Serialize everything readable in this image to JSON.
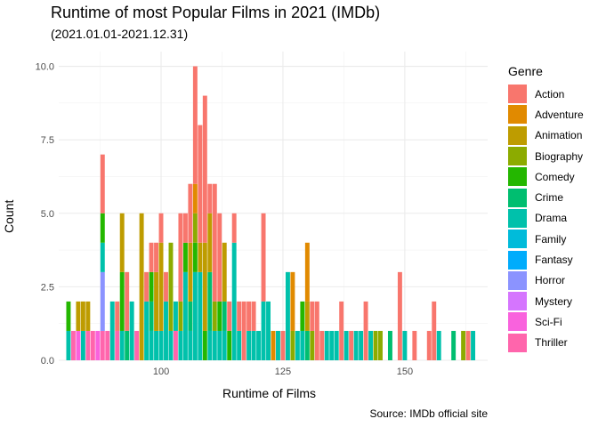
{
  "title": "Runtime of most Popular Films in 2021 (IMDb)",
  "subtitle": "(2021.01.01-2021.12.31)",
  "caption": "Source: IMDb official site",
  "legend_title": "Genre",
  "genres": [
    {
      "name": "Action",
      "color": "#F8766D"
    },
    {
      "name": "Adventure",
      "color": "#E18A00"
    },
    {
      "name": "Animation",
      "color": "#BE9C00"
    },
    {
      "name": "Biography",
      "color": "#8CAB00"
    },
    {
      "name": "Comedy",
      "color": "#24B700"
    },
    {
      "name": "Crime",
      "color": "#00BE70"
    },
    {
      "name": "Drama",
      "color": "#00C1AB"
    },
    {
      "name": "Family",
      "color": "#00BBDA"
    },
    {
      "name": "Fantasy",
      "color": "#00ACFC"
    },
    {
      "name": "Horror",
      "color": "#8B93FF"
    },
    {
      "name": "Mystery",
      "color": "#D575FE"
    },
    {
      "name": "Sci-Fi",
      "color": "#F962DD"
    },
    {
      "name": "Thriller",
      "color": "#FF65AC"
    }
  ],
  "chart_data": {
    "type": "bar",
    "stacked": true,
    "xlabel": "Runtime of Films",
    "ylabel": "Count",
    "xlim": [
      79,
      167
    ],
    "ylim": [
      0,
      10.5
    ],
    "x_ticks": [
      100,
      125,
      150
    ],
    "y_ticks": [
      0.0,
      2.5,
      5.0,
      7.5,
      10.0
    ],
    "y_tick_labels": [
      "0.0",
      "2.5",
      "5.0",
      "7.5",
      "10.0"
    ],
    "grid": true,
    "legend_position": "right",
    "bars": [
      {
        "x": 81,
        "stack": {
          "Comedy": 1,
          "Drama": 1
        }
      },
      {
        "x": 82,
        "stack": {
          "Thriller": 1
        }
      },
      {
        "x": 83,
        "stack": {
          "Animation": 1,
          "Sci-Fi": 1
        }
      },
      {
        "x": 84,
        "stack": {
          "Animation": 1,
          "Drama": 1
        }
      },
      {
        "x": 85,
        "stack": {
          "Animation": 1,
          "Thriller": 1
        }
      },
      {
        "x": 86,
        "stack": {
          "Thriller": 1
        }
      },
      {
        "x": 87,
        "stack": {
          "Sci-Fi": 1
        }
      },
      {
        "x": 88,
        "stack": {
          "Action": 2,
          "Comedy": 1,
          "Drama": 1,
          "Horror": 2,
          "Thriller": 1
        }
      },
      {
        "x": 89,
        "stack": {
          "Thriller": 1
        }
      },
      {
        "x": 90,
        "stack": {
          "Drama": 2
        }
      },
      {
        "x": 91,
        "stack": {
          "Action": 1,
          "Thriller": 1
        }
      },
      {
        "x": 92,
        "stack": {
          "Animation": 2,
          "Comedy": 2,
          "Drama": 1
        }
      },
      {
        "x": 93,
        "stack": {
          "Action": 2,
          "Crime": 1
        }
      },
      {
        "x": 94,
        "stack": {
          "Drama": 2
        }
      },
      {
        "x": 95,
        "stack": {
          "Thriller": 1
        }
      },
      {
        "x": 96,
        "stack": {
          "Animation": 5
        }
      },
      {
        "x": 97,
        "stack": {
          "Action": 1,
          "Drama": 2
        }
      },
      {
        "x": 98,
        "stack": {
          "Action": 1,
          "Comedy": 1,
          "Crime": 1,
          "Drama": 1
        }
      },
      {
        "x": 99,
        "stack": {
          "Action": 1,
          "Animation": 2,
          "Drama": 1
        }
      },
      {
        "x": 100,
        "stack": {
          "Action": 1,
          "Animation": 3,
          "Drama": 1
        }
      },
      {
        "x": 101,
        "stack": {
          "Action": 1,
          "Drama": 2
        }
      },
      {
        "x": 102,
        "stack": {
          "Biography": 3,
          "Drama": 1
        }
      },
      {
        "x": 103,
        "stack": {
          "Drama": 1,
          "Thriller": 1
        }
      },
      {
        "x": 104,
        "stack": {
          "Action": 3,
          "Biography": 1,
          "Drama": 1
        }
      },
      {
        "x": 105,
        "stack": {
          "Action": 1,
          "Comedy": 1,
          "Drama": 3
        }
      },
      {
        "x": 106,
        "stack": {
          "Action": 2,
          "Animation": 2,
          "Crime": 1,
          "Drama": 1
        }
      },
      {
        "x": 107,
        "stack": {
          "Action": 4,
          "Adventure": 1,
          "Biography": 1,
          "Comedy": 1,
          "Drama": 3
        }
      },
      {
        "x": 108,
        "stack": {
          "Action": 4,
          "Animation": 1,
          "Drama": 3
        }
      },
      {
        "x": 109,
        "stack": {
          "Action": 5,
          "Animation": 3,
          "Comedy": 1
        }
      },
      {
        "x": 110,
        "stack": {
          "Action": 1,
          "Animation": 2,
          "Crime": 2,
          "Drama": 1
        }
      },
      {
        "x": 111,
        "stack": {
          "Action": 4,
          "Biography": 1,
          "Drama": 1
        }
      },
      {
        "x": 112,
        "stack": {
          "Action": 3,
          "Comedy": 1,
          "Drama": 1
        }
      },
      {
        "x": 113,
        "stack": {
          "Animation": 2,
          "Crime": 1,
          "Drama": 1
        }
      },
      {
        "x": 114,
        "stack": {
          "Action": 1,
          "Comedy": 1
        }
      },
      {
        "x": 115,
        "stack": {
          "Action": 1,
          "Drama": 4
        }
      },
      {
        "x": 116,
        "stack": {
          "Action": 1,
          "Drama": 1
        }
      },
      {
        "x": 117,
        "stack": {
          "Action": 2
        }
      },
      {
        "x": 118,
        "stack": {
          "Action": 1,
          "Drama": 1
        }
      },
      {
        "x": 119,
        "stack": {
          "Action": 1,
          "Drama": 1
        }
      },
      {
        "x": 120,
        "stack": {
          "Drama": 1
        }
      },
      {
        "x": 121,
        "stack": {
          "Action": 3,
          "Drama": 2
        }
      },
      {
        "x": 122,
        "stack": {
          "Drama": 2
        }
      },
      {
        "x": 123,
        "stack": {
          "Adventure": 1
        }
      },
      {
        "x": 124,
        "stack": {
          "Drama": 1
        }
      },
      {
        "x": 125,
        "stack": {
          "Action": 1
        }
      },
      {
        "x": 126,
        "stack": {
          "Drama": 3
        }
      },
      {
        "x": 127,
        "stack": {
          "Adventure": 2,
          "Biography": 1
        }
      },
      {
        "x": 128,
        "stack": {
          "Drama": 1
        }
      },
      {
        "x": 129,
        "stack": {
          "Comedy": 1,
          "Drama": 1
        }
      },
      {
        "x": 130,
        "stack": {
          "Adventure": 2,
          "Animation": 1,
          "Crime": 1
        }
      },
      {
        "x": 131,
        "stack": {
          "Action": 1,
          "Biography": 1
        }
      },
      {
        "x": 132,
        "stack": {
          "Action": 2
        }
      },
      {
        "x": 133,
        "stack": {
          "Action": 1
        }
      },
      {
        "x": 134,
        "stack": {
          "Drama": 1
        }
      },
      {
        "x": 135,
        "stack": {
          "Drama": 1
        }
      },
      {
        "x": 136,
        "stack": {
          "Drama": 1
        }
      },
      {
        "x": 137,
        "stack": {
          "Action": 2
        }
      },
      {
        "x": 138,
        "stack": {
          "Drama": 1
        }
      },
      {
        "x": 139,
        "stack": {
          "Action": 1
        }
      },
      {
        "x": 140,
        "stack": {
          "Drama": 1
        }
      },
      {
        "x": 141,
        "stack": {
          "Drama": 1
        }
      },
      {
        "x": 142,
        "stack": {
          "Action": 2
        }
      },
      {
        "x": 143,
        "stack": {
          "Drama": 1
        }
      },
      {
        "x": 144,
        "stack": {
          "Biography": 1
        }
      },
      {
        "x": 145,
        "stack": {
          "Biography": 1
        }
      },
      {
        "x": 147,
        "stack": {
          "Crime": 1
        }
      },
      {
        "x": 149,
        "stack": {
          "Action": 3
        }
      },
      {
        "x": 150,
        "stack": {
          "Drama": 1
        }
      },
      {
        "x": 152,
        "stack": {
          "Action": 1
        }
      },
      {
        "x": 155,
        "stack": {
          "Action": 1
        }
      },
      {
        "x": 156,
        "stack": {
          "Action": 2
        }
      },
      {
        "x": 157,
        "stack": {
          "Drama": 1
        }
      },
      {
        "x": 160,
        "stack": {
          "Crime": 1
        }
      },
      {
        "x": 162,
        "stack": {
          "Biography": 1
        }
      },
      {
        "x": 163,
        "stack": {
          "Action": 1
        }
      },
      {
        "x": 164,
        "stack": {
          "Drama": 1
        }
      }
    ]
  }
}
